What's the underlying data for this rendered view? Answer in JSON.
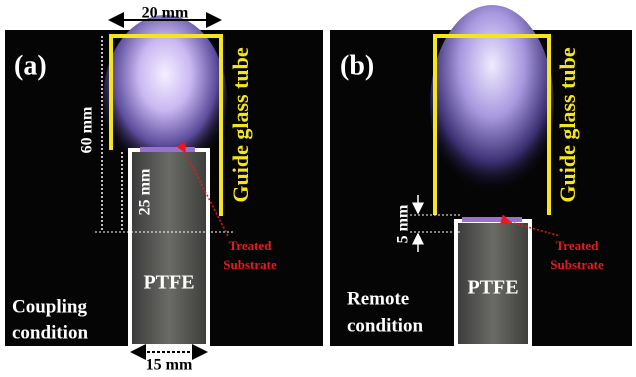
{
  "panels": [
    {
      "label": "(a)",
      "width_label": "20 mm",
      "height_label": "60 mm",
      "gap_label": "25 mm",
      "tube_label": "Guide glass tube",
      "substrate_label": [
        "Treated",
        "Substrate"
      ],
      "sample_label": "PTFE",
      "condition": [
        "Coupling",
        "condition"
      ],
      "sample_width_label": "15 mm"
    },
    {
      "label": "(b)",
      "gap_label": "5 mm",
      "tube_label": "Guide glass tube",
      "substrate_label": [
        "Treated",
        "Substrate"
      ],
      "sample_label": "PTFE",
      "condition": [
        "Remote",
        "condition"
      ]
    }
  ]
}
